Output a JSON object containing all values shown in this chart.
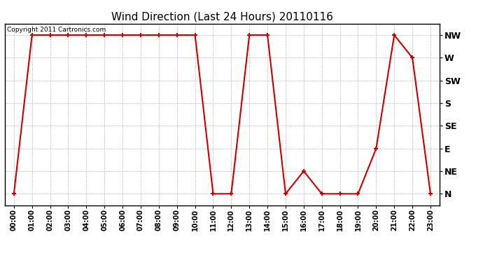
{
  "title": "Wind Direction (Last 24 Hours) 20110116",
  "copyright": "Copyright 2011 Cartronics.com",
  "x_labels": [
    "00:00",
    "01:00",
    "02:00",
    "03:00",
    "04:00",
    "05:00",
    "06:00",
    "07:00",
    "08:00",
    "09:00",
    "10:00",
    "11:00",
    "12:00",
    "13:00",
    "14:00",
    "15:00",
    "16:00",
    "17:00",
    "18:00",
    "19:00",
    "20:00",
    "21:00",
    "22:00",
    "23:00"
  ],
  "y_labels": [
    "N",
    "NE",
    "E",
    "SE",
    "S",
    "SW",
    "W",
    "NW"
  ],
  "y_values": [
    0,
    1,
    2,
    3,
    4,
    5,
    6,
    7
  ],
  "wind_data": [
    0,
    7,
    7,
    7,
    7,
    7,
    7,
    7,
    7,
    7,
    7,
    0,
    0,
    7,
    7,
    0,
    1,
    0,
    0,
    0,
    2,
    7,
    6,
    0
  ],
  "line_color": "#cc0000",
  "marker": "+",
  "marker_size": 5,
  "marker_linewidth": 1.5,
  "line_width": 1.5,
  "bg_color": "#ffffff",
  "plot_bg_color": "#ffffff",
  "grid_color": "#bbbbbb",
  "title_fontsize": 11,
  "copyright_fontsize": 6.5,
  "y_label_fontsize": 9,
  "x_tick_fontsize": 7
}
